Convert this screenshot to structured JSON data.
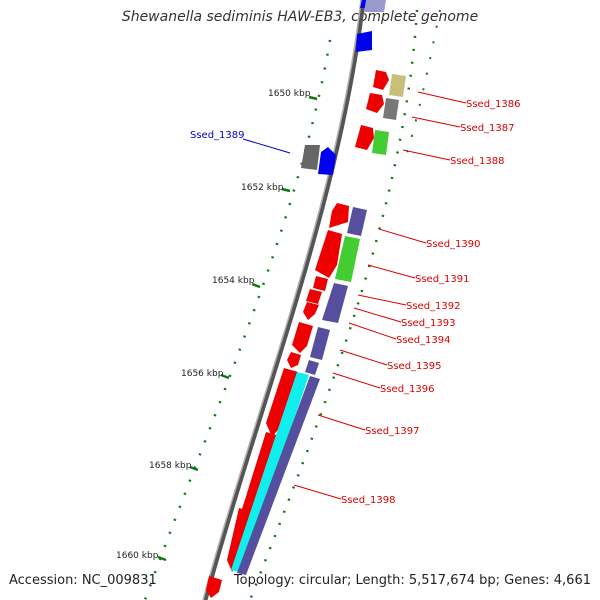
{
  "title": "Shewanella sediminis HAW-EB3, complete genome",
  "footer": {
    "accession": "Accession: NC_009831",
    "topology": "Topology: circular; Length: 5,517,674 bp; Genes: 4,661"
  },
  "colors": {
    "backbone": "#888888",
    "forward_gene": "#ee0000",
    "reverse_gene": "#0000ee",
    "label_red": "#dd0000",
    "label_blue": "#0000cc",
    "tick": "#117711",
    "track_purple": "#554f9e",
    "track_green": "#44cc33",
    "track_cyan": "#11eeee",
    "track_gray": "#777777",
    "track_khaki": "#c8c07a"
  },
  "scale_labels": [
    "1650 kbp",
    "1652 kbp",
    "1654 kbp",
    "1656 kbp",
    "1658 kbp",
    "1660 kbp"
  ],
  "gene_labels": [
    {
      "text": "Ssed_1386",
      "strand": "+"
    },
    {
      "text": "Ssed_1387",
      "strand": "+"
    },
    {
      "text": "Ssed_1388",
      "strand": "+"
    },
    {
      "text": "Ssed_1389",
      "strand": "-"
    },
    {
      "text": "Ssed_1390",
      "strand": "+"
    },
    {
      "text": "Ssed_1391",
      "strand": "+"
    },
    {
      "text": "Ssed_1392",
      "strand": "+"
    },
    {
      "text": "Ssed_1393",
      "strand": "+"
    },
    {
      "text": "Ssed_1394",
      "strand": "+"
    },
    {
      "text": "Ssed_1395",
      "strand": "+"
    },
    {
      "text": "Ssed_1396",
      "strand": "+"
    },
    {
      "text": "Ssed_1397",
      "strand": "+"
    },
    {
      "text": "Ssed_1398",
      "strand": "+"
    }
  ]
}
